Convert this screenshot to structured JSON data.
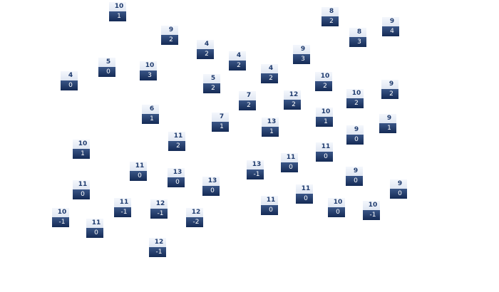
{
  "tiles": [
    {
      "top": "10",
      "bottom": "1"
    },
    {
      "top": "9",
      "bottom": "2"
    },
    {
      "top": "4",
      "bottom": "2"
    },
    {
      "top": "4",
      "bottom": "2"
    },
    {
      "top": "4",
      "bottom": "2"
    },
    {
      "top": "9",
      "bottom": "3"
    },
    {
      "top": "8",
      "bottom": "2"
    },
    {
      "top": "8",
      "bottom": "3"
    },
    {
      "top": "9",
      "bottom": "4"
    },
    {
      "top": "5",
      "bottom": "0"
    },
    {
      "top": "10",
      "bottom": "3"
    },
    {
      "top": "4",
      "bottom": "0"
    },
    {
      "top": "5",
      "bottom": "2"
    },
    {
      "top": "7",
      "bottom": "2"
    },
    {
      "top": "12",
      "bottom": "2"
    },
    {
      "top": "10",
      "bottom": "2"
    },
    {
      "top": "10",
      "bottom": "2"
    },
    {
      "top": "9",
      "bottom": "2"
    },
    {
      "top": "6",
      "bottom": "1"
    },
    {
      "top": "7",
      "bottom": "1"
    },
    {
      "top": "13",
      "bottom": "1"
    },
    {
      "top": "10",
      "bottom": "1"
    },
    {
      "top": "9",
      "bottom": "1"
    },
    {
      "top": "9",
      "bottom": "0"
    },
    {
      "top": "11",
      "bottom": "2"
    },
    {
      "top": "10",
      "bottom": "1"
    },
    {
      "top": "11",
      "bottom": "0"
    },
    {
      "top": "11",
      "bottom": "0"
    },
    {
      "top": "13",
      "bottom": "-1"
    },
    {
      "top": "11",
      "bottom": "0"
    },
    {
      "top": "13",
      "bottom": "0"
    },
    {
      "top": "13",
      "bottom": "0"
    },
    {
      "top": "9",
      "bottom": "0"
    },
    {
      "top": "11",
      "bottom": "0"
    },
    {
      "top": "9",
      "bottom": "0"
    },
    {
      "top": "11",
      "bottom": "0"
    },
    {
      "top": "11",
      "bottom": "0"
    },
    {
      "top": "10",
      "bottom": "0"
    },
    {
      "top": "10",
      "bottom": "-1"
    },
    {
      "top": "11",
      "bottom": "-1"
    },
    {
      "top": "12",
      "bottom": "-1"
    },
    {
      "top": "12",
      "bottom": "-2"
    },
    {
      "top": "10",
      "bottom": "-1"
    },
    {
      "top": "11",
      "bottom": "0"
    },
    {
      "top": "12",
      "bottom": "-1"
    }
  ]
}
